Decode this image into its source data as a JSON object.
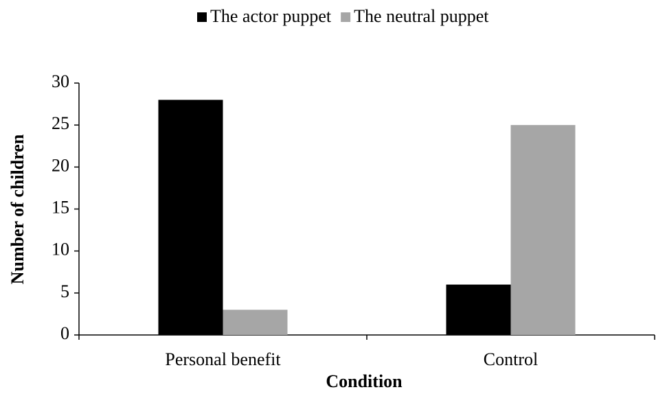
{
  "chart_data": {
    "type": "bar",
    "categories": [
      "Personal benefit",
      "Control"
    ],
    "series": [
      {
        "name": "The actor puppet",
        "color": "#000000",
        "values": [
          28,
          6
        ]
      },
      {
        "name": "The neutral puppet",
        "color": "#a6a6a6",
        "values": [
          3,
          25
        ]
      }
    ],
    "xlabel": "Condition",
    "ylabel": "Number of children",
    "ylim": [
      0,
      30
    ],
    "yticks": [
      0,
      5,
      10,
      15,
      20,
      25,
      30
    ],
    "grid": false,
    "legend": "top"
  }
}
